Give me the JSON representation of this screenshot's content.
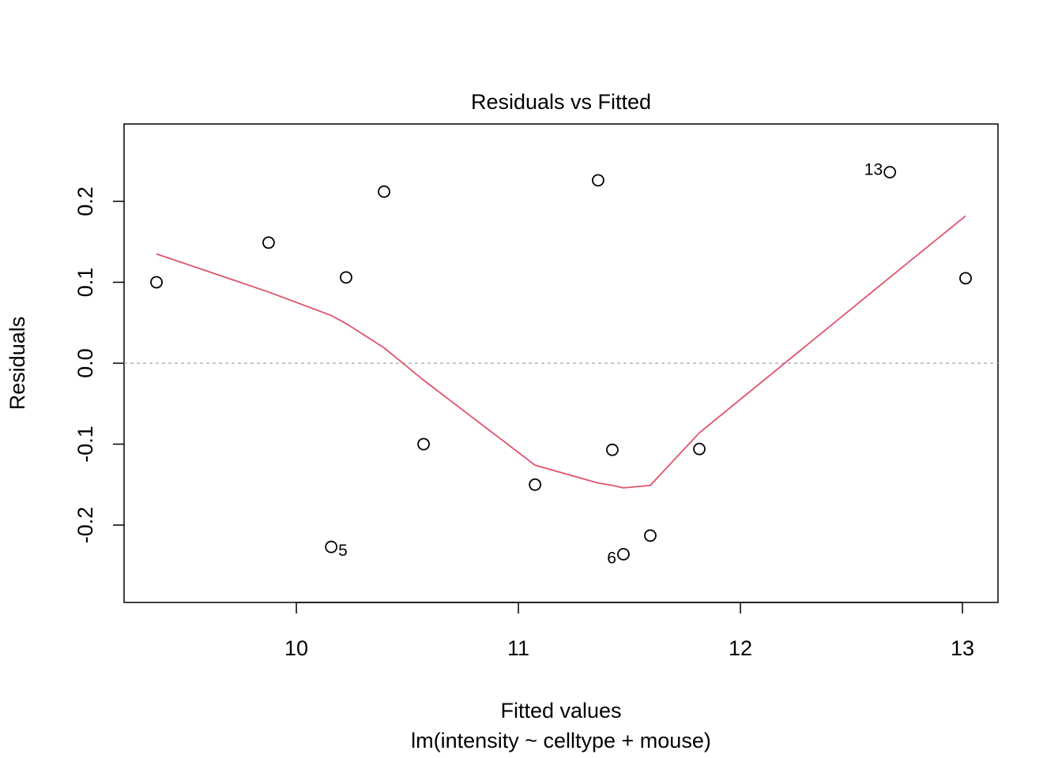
{
  "chart_data": {
    "type": "scatter",
    "title": "Residuals vs Fitted",
    "x_label": "Fitted values",
    "subtitle": "lm(intensity ~ celltype + mouse)",
    "y_label": "Residuals",
    "x": [
      9.37,
      9.875,
      10.157,
      10.224,
      10.395,
      10.573,
      11.075,
      11.359,
      11.423,
      11.473,
      11.594,
      11.815,
      12.673,
      13.014
    ],
    "values": [
      0.1,
      0.149,
      -0.227,
      0.106,
      0.212,
      -0.1,
      -0.15,
      0.226,
      -0.107,
      -0.236,
      -0.213,
      -0.106,
      0.236,
      0.105
    ],
    "point_labels": [
      null,
      null,
      "5",
      null,
      null,
      null,
      null,
      null,
      null,
      "6",
      null,
      null,
      "13",
      null
    ],
    "color": "#000000",
    "smooth": {
      "color": "#DF536B",
      "values": [
        0.135,
        0.088,
        0.059,
        0.049,
        0.019,
        -0.021,
        -0.126,
        -0.148,
        -0.151,
        -0.154,
        -0.151,
        -0.086,
        0.106,
        0.182
      ]
    },
    "reference_line": {
      "value": 0,
      "color": "#b3b3b3"
    },
    "xlim": [
      9.224,
      13.16
    ],
    "ylim": [
      -0.2956,
      0.2956
    ],
    "xticks": [
      10,
      11,
      12,
      13
    ],
    "yticks": [
      {
        "value": -0.2,
        "label": "-0.2"
      },
      {
        "value": -0.1,
        "label": "-0.1"
      },
      {
        "value": 0,
        "label": "0.0"
      },
      {
        "value": 0.1,
        "label": "0.1"
      },
      {
        "value": 0.2,
        "label": "0.2"
      }
    ]
  }
}
